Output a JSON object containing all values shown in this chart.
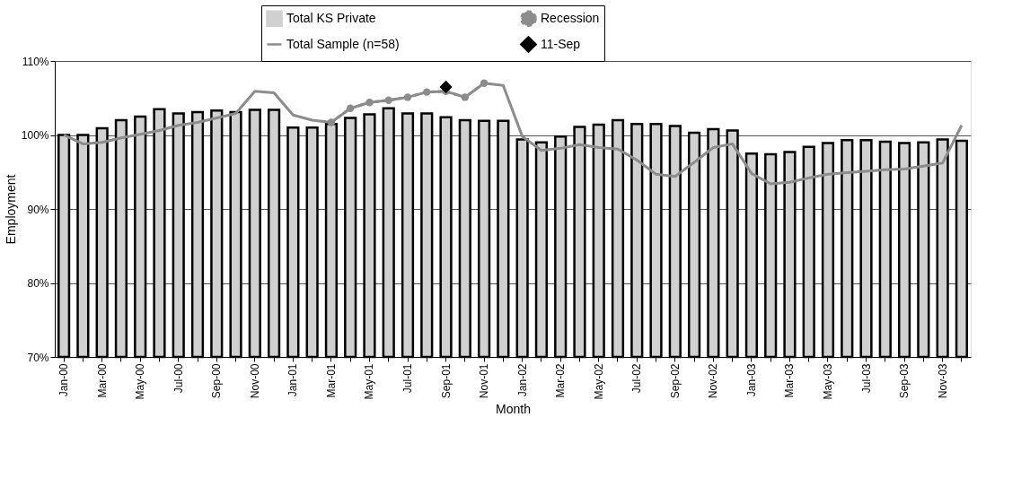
{
  "chart_data": {
    "type": "bar",
    "xlabel": "Month",
    "ylabel": "Employment",
    "categories": [
      "Jan-00",
      null,
      "Mar-00",
      null,
      "May-00",
      null,
      "Jul-00",
      null,
      "Sep-00",
      null,
      "Nov-00",
      null,
      "Jan-01",
      null,
      "Mar-01",
      null,
      "May-01",
      null,
      "Jul-01",
      null,
      "Sep-01",
      null,
      "Nov-01",
      null,
      "Jan-02",
      null,
      "Mar-02",
      null,
      "May-02",
      null,
      "Jul-02",
      null,
      "Sep-02",
      null,
      "Nov-02",
      null,
      "Jan-03",
      null,
      "Mar-03",
      null,
      "May-03",
      null,
      "Jul-03",
      null,
      "Sep-03",
      null,
      "Nov-03",
      null
    ],
    "series": [
      {
        "name": "Total KS Private",
        "color": "#d0d0d0",
        "values": [
          100.0,
          100.0,
          100.9,
          102.0,
          102.5,
          103.5,
          102.9,
          103.1,
          103.3,
          103.1,
          103.4,
          103.4,
          101.0,
          101.0,
          101.5,
          102.3,
          102.8,
          103.6,
          102.9,
          102.9,
          102.4,
          102.0,
          101.9,
          101.9,
          99.4,
          99.0,
          99.8,
          101.1,
          101.4,
          102.0,
          101.5,
          101.5,
          101.2,
          100.3,
          100.8,
          100.6,
          97.5,
          97.4,
          97.7,
          98.4,
          98.9,
          99.3,
          99.3,
          99.1,
          98.9,
          99.0,
          99.4,
          99.2
        ]
      },
      {
        "name": "Total Sample (n=58)",
        "type": "line",
        "color": "#8c8c8c",
        "line_style": "solid",
        "marker": "none",
        "values": [
          100.0,
          98.8,
          99.0,
          99.6,
          100.1,
          100.6,
          101.3,
          101.7,
          102.3,
          102.9,
          105.9,
          105.7,
          102.7,
          102.0,
          101.7,
          103.6,
          104.4,
          104.7,
          105.1,
          105.8,
          105.9,
          105.1,
          107.0,
          106.7,
          99.8,
          97.9,
          98.2,
          98.7,
          98.3,
          98.1,
          96.6,
          94.7,
          94.4,
          96.3,
          98.3,
          98.8,
          94.8,
          93.4,
          93.6,
          94.2,
          94.7,
          94.9,
          95.1,
          95.3,
          95.4,
          95.8,
          96.2,
          101.3
        ]
      },
      {
        "name": "Recession",
        "type": "line",
        "color": "#8c8c8c",
        "line_style": "dashed",
        "marker": "circle",
        "values": [
          null,
          null,
          null,
          null,
          null,
          null,
          null,
          null,
          null,
          null,
          null,
          null,
          null,
          null,
          101.7,
          103.6,
          104.4,
          104.7,
          105.1,
          105.8,
          105.9,
          105.1,
          107.0,
          null,
          null,
          null,
          null,
          null,
          null,
          null,
          null,
          null,
          null,
          null,
          null,
          null,
          null,
          null,
          null,
          null,
          null,
          null,
          null,
          null,
          null,
          null,
          null,
          null
        ]
      },
      {
        "name": "11-Sep",
        "type": "scatter",
        "color": "#000000",
        "marker": "diamond",
        "values": [
          null,
          null,
          null,
          null,
          null,
          null,
          null,
          null,
          null,
          null,
          null,
          null,
          null,
          null,
          null,
          null,
          null,
          null,
          null,
          null,
          106.5,
          null,
          null,
          null,
          null,
          null,
          null,
          null,
          null,
          null,
          null,
          null,
          null,
          null,
          null,
          null,
          null,
          null,
          null,
          null,
          null,
          null,
          null,
          null,
          null,
          null,
          null,
          null
        ]
      }
    ],
    "ylim": [
      70,
      110
    ],
    "yticks": [
      {
        "value": 70,
        "label": "70%"
      },
      {
        "value": 80,
        "label": "80%"
      },
      {
        "value": 90,
        "label": "90%"
      },
      {
        "value": 100,
        "label": "100%"
      },
      {
        "value": 110,
        "label": "110%"
      }
    ],
    "grid": "y",
    "legend": "top"
  }
}
